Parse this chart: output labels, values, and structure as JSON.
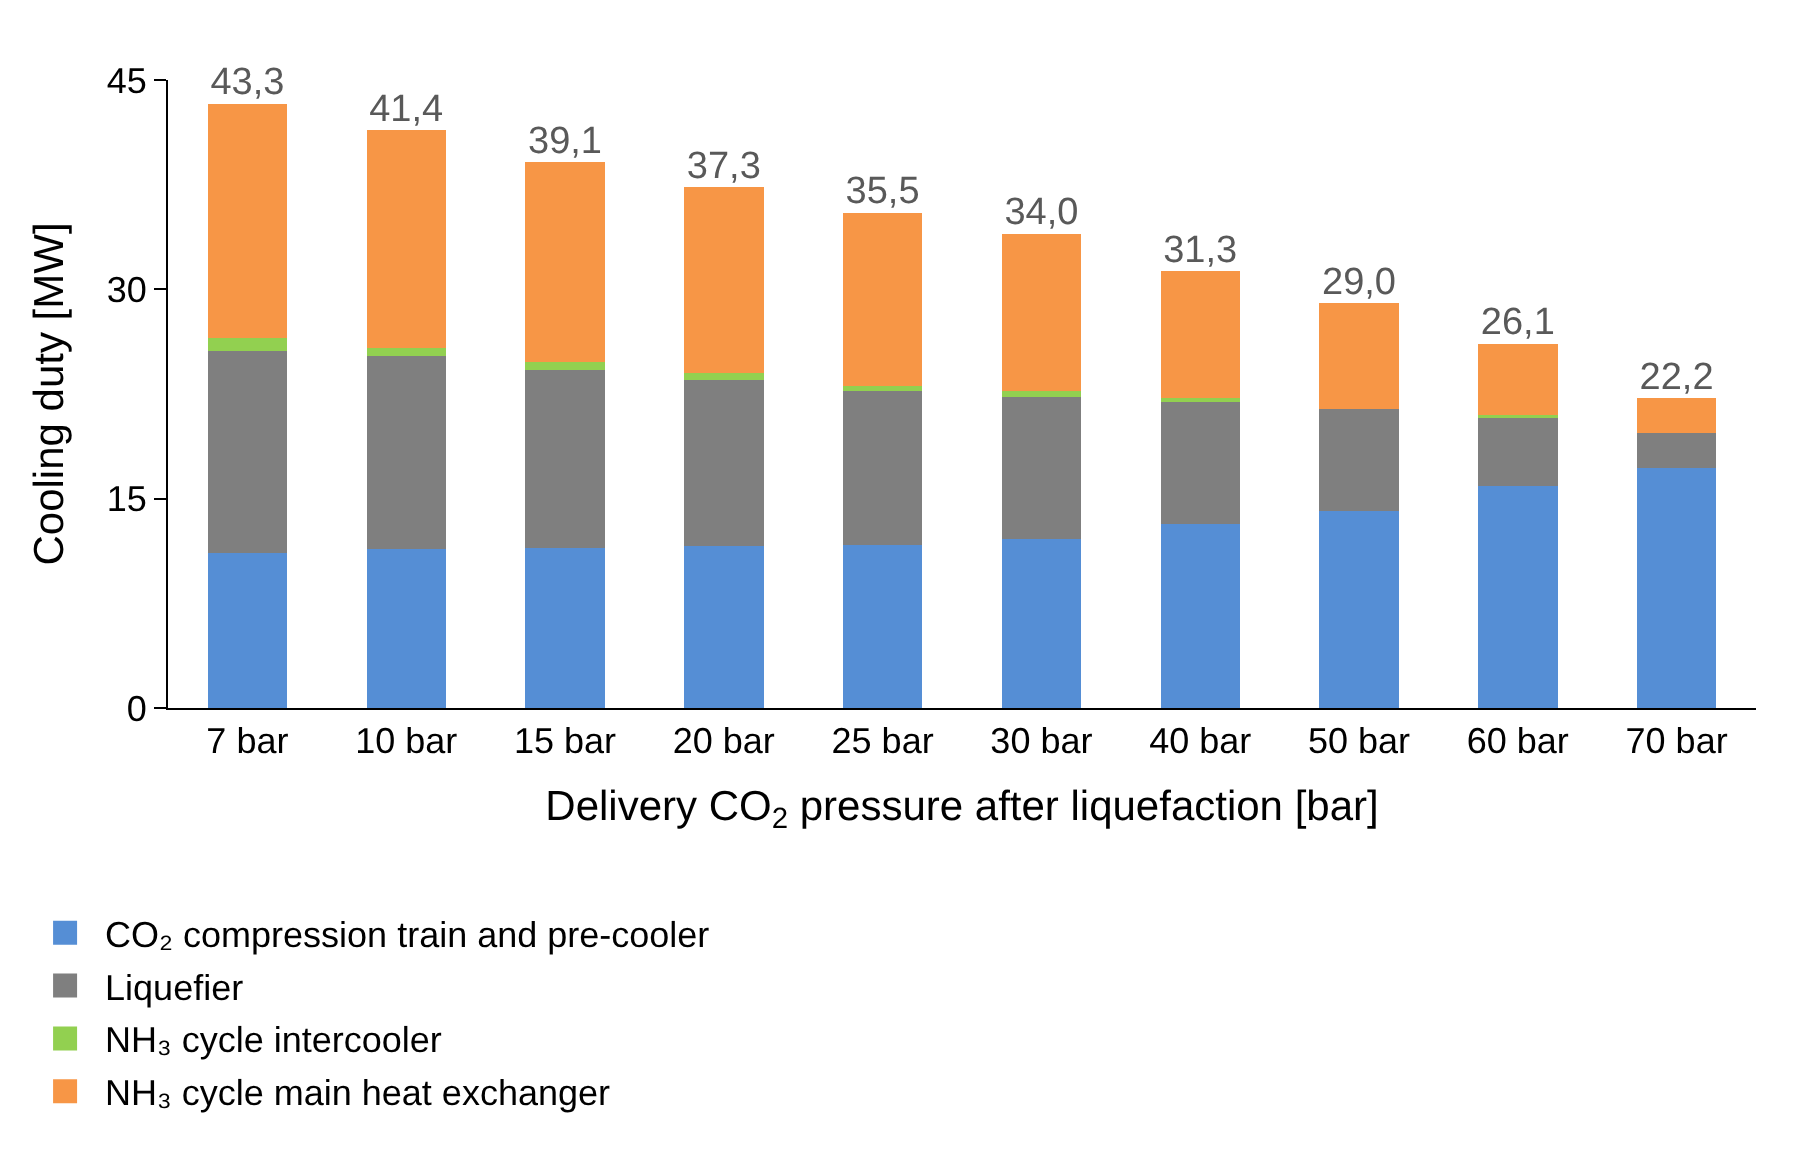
{
  "chart_data": {
    "type": "bar",
    "stacked": true,
    "xlabel": "Delivery CO$_{2}$ pressure after liquefaction [bar]",
    "ylabel": "Cooling duty [MW]",
    "categories": [
      "7 bar",
      "10 bar",
      "15 bar",
      "20 bar",
      "25 bar",
      "30 bar",
      "40 bar",
      "50 bar",
      "60 bar",
      "70 bar"
    ],
    "series": [
      {
        "name": "CO₂ compression train and pre-cooler",
        "color": "#558ed5",
        "values": [
          11.1,
          11.4,
          11.5,
          11.6,
          11.7,
          12.1,
          13.2,
          14.1,
          15.9,
          17.2
        ]
      },
      {
        "name": "Liquefier",
        "color": "#7f7f7f",
        "values": [
          14.5,
          13.8,
          12.7,
          11.9,
          11.0,
          10.2,
          8.8,
          7.3,
          4.9,
          2.5
        ]
      },
      {
        "name": "NH₃ cycle intercooler",
        "color": "#92d050",
        "values": [
          0.9,
          0.6,
          0.6,
          0.5,
          0.4,
          0.4,
          0.2,
          0,
          0.2,
          0
        ]
      },
      {
        "name": "NH₃ cycle main heat exchanger",
        "color": "#f79646",
        "values": [
          16.8,
          15.6,
          14.3,
          13.3,
          12.4,
          11.3,
          9.1,
          7.6,
          5.1,
          2.5
        ]
      }
    ],
    "totals": [
      "43,3",
      "41,4",
      "39,1",
      "37,3",
      "35,5",
      "34,0",
      "31,3",
      "29,0",
      "26,1",
      "22,2"
    ],
    "ylim": [
      0,
      45
    ],
    "yticks": [
      0,
      15,
      30,
      45
    ],
    "grid": false,
    "legend": "bottom"
  }
}
